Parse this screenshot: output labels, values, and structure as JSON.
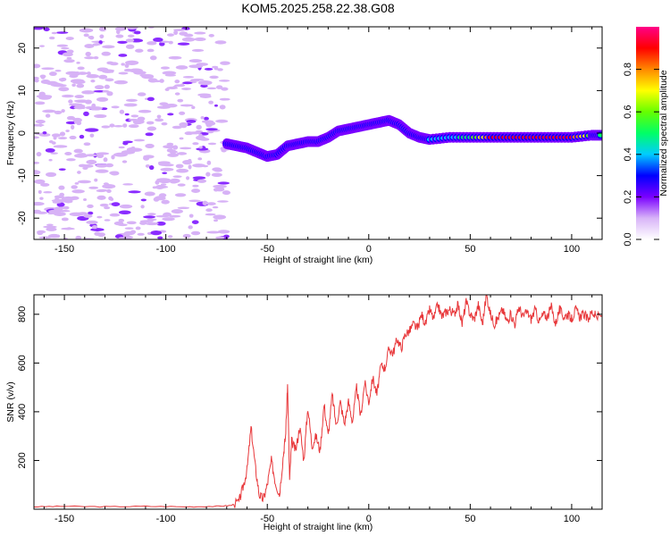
{
  "title": "KOM5.2025.258.22.38.G08",
  "chart_data": [
    {
      "type": "heatmap",
      "name": "spectrogram",
      "xlabel": "Height of straight line (km)",
      "ylabel": "Frequency (Hz)",
      "xlim": [
        -165,
        115
      ],
      "ylim": [
        -25,
        25
      ],
      "xticks": [
        -150,
        -100,
        -50,
        0,
        50,
        100
      ],
      "yticks": [
        -20,
        -10,
        0,
        10,
        20
      ],
      "colorbar": {
        "label": "Normalized spectral amplitude",
        "range": [
          0,
          1
        ],
        "ticks": [
          0.0,
          0.2,
          0.4,
          0.6,
          0.8
        ],
        "tick_labels": [
          "0.0",
          "0.2",
          "0.4",
          "0.6",
          "0.8"
        ],
        "colors": [
          "#ffffff",
          "#d8b4f8",
          "#7a00ff",
          "#0000ff",
          "#00ccff",
          "#00ff66",
          "#66ff00",
          "#ffff00",
          "#ff8800",
          "#ff0000",
          "#ff0088"
        ]
      },
      "signal_track": {
        "x": [
          -70,
          -65,
          -60,
          -55,
          -50,
          -45,
          -40,
          -35,
          -30,
          -25,
          -20,
          -15,
          -10,
          -5,
          0,
          5,
          10,
          15,
          20,
          25,
          30,
          40,
          50,
          60,
          70,
          80,
          90,
          100,
          110,
          115
        ],
        "freq": [
          -2.5,
          -3,
          -3.5,
          -4.5,
          -5.5,
          -5,
          -3,
          -2.5,
          -2,
          -2,
          -1,
          0.5,
          1,
          1.5,
          2,
          2.5,
          3,
          2,
          0,
          -1,
          -1.5,
          -1,
          -1,
          -1,
          -1,
          -1,
          -1,
          -1,
          -0.5,
          -0.5
        ],
        "amp": [
          0.25,
          0.3,
          0.35,
          0.4,
          0.35,
          0.35,
          0.3,
          0.3,
          0.35,
          0.35,
          0.4,
          0.45,
          0.45,
          0.4,
          0.45,
          0.45,
          0.45,
          0.4,
          0.35,
          0.3,
          0.35,
          0.4,
          0.5,
          0.85,
          0.85,
          0.9,
          0.9,
          0.85,
          0.6,
          0.5
        ]
      },
      "noise_region_x": [
        -165,
        -70
      ]
    },
    {
      "type": "line",
      "name": "snr",
      "xlabel": "Height of straight line (km)",
      "ylabel": "SNR (v/v)",
      "xlim": [
        -165,
        115
      ],
      "ylim": [
        0,
        880
      ],
      "xticks": [
        -150,
        -100,
        -50,
        0,
        50,
        100
      ],
      "yticks": [
        200,
        400,
        600,
        800
      ],
      "series": [
        {
          "name": "SNR",
          "color": "#e8373a",
          "x": [
            -165,
            -150,
            -130,
            -110,
            -90,
            -75,
            -68,
            -64,
            -62,
            -60,
            -58,
            -56,
            -54,
            -52,
            -50,
            -48,
            -46,
            -44,
            -42,
            -41,
            -40,
            -39,
            -38,
            -36,
            -34,
            -32,
            -30,
            -28,
            -26,
            -24,
            -22,
            -20,
            -18,
            -16,
            -14,
            -12,
            -10,
            -8,
            -6,
            -4,
            -2,
            0,
            2,
            4,
            6,
            8,
            10,
            12,
            14,
            16,
            18,
            20,
            22,
            24,
            26,
            28,
            30,
            32,
            34,
            36,
            38,
            40,
            42,
            44,
            46,
            48,
            50,
            52,
            54,
            56,
            58,
            60,
            62,
            64,
            66,
            68,
            70,
            72,
            74,
            76,
            78,
            80,
            82,
            84,
            86,
            88,
            90,
            92,
            94,
            96,
            98,
            100,
            102,
            104,
            106,
            108,
            110,
            112,
            115
          ],
          "values": [
            10,
            12,
            10,
            12,
            10,
            12,
            15,
            30,
            90,
            160,
            335,
            180,
            60,
            40,
            100,
            200,
            110,
            60,
            230,
            300,
            510,
            120,
            280,
            240,
            340,
            200,
            420,
            260,
            300,
            240,
            430,
            300,
            470,
            340,
            440,
            350,
            440,
            360,
            500,
            380,
            520,
            440,
            540,
            470,
            590,
            580,
            660,
            640,
            700,
            660,
            720,
            730,
            760,
            740,
            800,
            760,
            820,
            780,
            840,
            790,
            810,
            820,
            800,
            840,
            760,
            850,
            800,
            780,
            840,
            760,
            880,
            800,
            760,
            790,
            820,
            770,
            800,
            760,
            830,
            790,
            810,
            780,
            820,
            770,
            800,
            790,
            830,
            760,
            820,
            790,
            800,
            780,
            820,
            790,
            800,
            780,
            810,
            790,
            790
          ]
        }
      ]
    }
  ]
}
